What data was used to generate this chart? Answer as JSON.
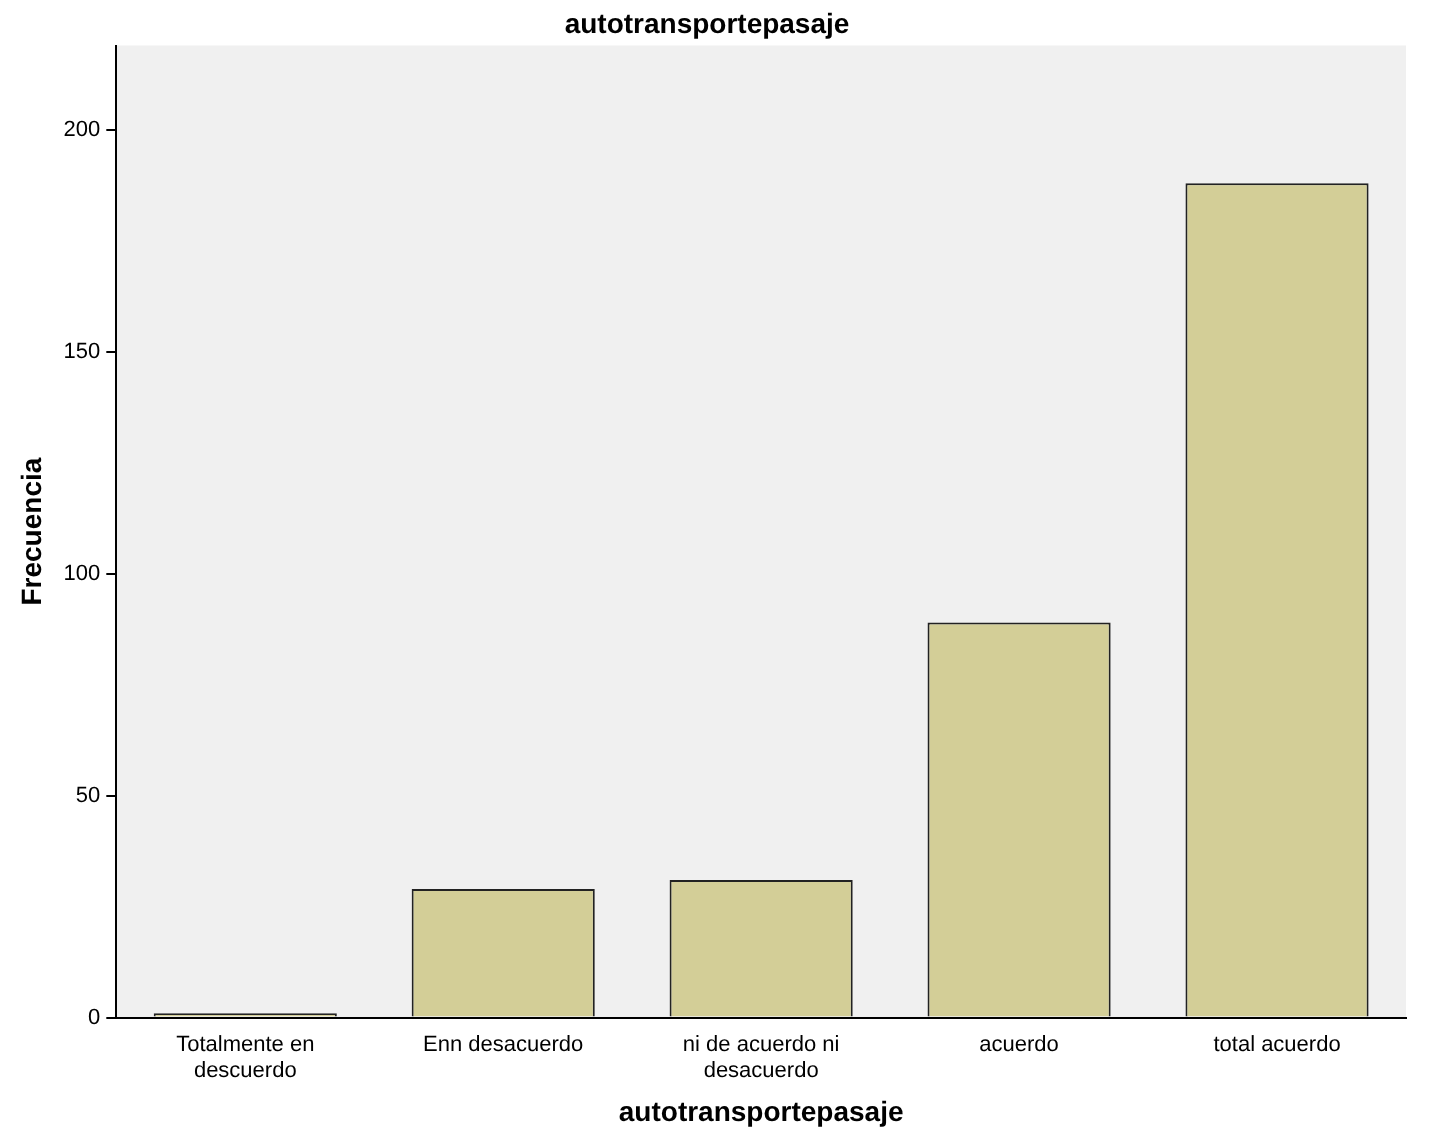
{
  "chart_data": {
    "type": "bar",
    "title": "autotransportepasaje",
    "xlabel": "autotransportepasaje",
    "ylabel": "Frecuencia",
    "categories": [
      "Totalmente en descuerdo",
      "Enn desacuerdo",
      "ni de acuerdo ni desacuerdo",
      "acuerdo",
      "total acuerdo"
    ],
    "values": [
      1,
      29,
      31,
      89,
      188
    ],
    "color": "#d3ce97",
    "ylim": [
      0,
      219
    ],
    "yticks": [
      0,
      50,
      100,
      150,
      200
    ],
    "grid": false,
    "legend": false
  }
}
